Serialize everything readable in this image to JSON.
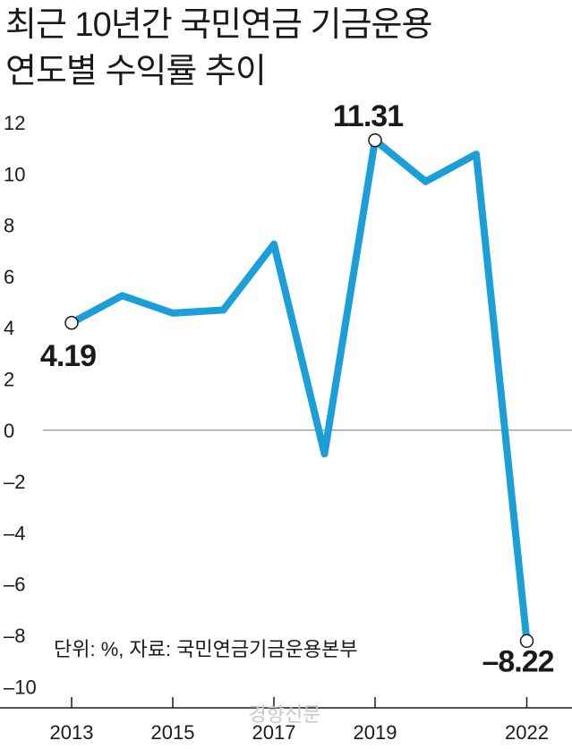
{
  "title_lines": [
    "최근 10년간 국민연금 기금운용",
    "연도별 수익률 추이"
  ],
  "note": "단위: %, 자료: 국민연금기금운용본부",
  "watermark": "경향신문",
  "colors": {
    "line": "#1a9fd9",
    "text": "#1a1a1a",
    "zero": "#777777",
    "marker_fill": "#ffffff"
  },
  "chart_data": {
    "type": "line",
    "title": "최근 10년간 국민연금 기금운용 연도별 수익률 추이",
    "xlabel": "",
    "ylabel": "",
    "x": [
      2013,
      2014,
      2015,
      2016,
      2017,
      2018,
      2019,
      2020,
      2021,
      2022
    ],
    "series": [
      {
        "values": [
          4.19,
          5.25,
          4.57,
          4.69,
          7.26,
          -0.92,
          11.31,
          9.7,
          10.77,
          -8.22
        ]
      }
    ],
    "ylim": [
      -10,
      12
    ],
    "yticks": [
      12,
      10,
      8,
      6,
      4,
      2,
      0,
      -2,
      -4,
      -6,
      -8,
      -10
    ],
    "ytick_labels": [
      "12",
      "10",
      "8",
      "6",
      "4",
      "2",
      "0",
      "–2",
      "–4",
      "–6",
      "–8",
      "–10"
    ],
    "xtick_labels": [
      "2013",
      "2015",
      "2017",
      "2019",
      "2022"
    ],
    "xtick_values": [
      2013,
      2015,
      2017,
      2019,
      2022
    ],
    "point_labels": [
      {
        "x": 2013,
        "text": "4.19"
      },
      {
        "x": 2019,
        "text": "11.31"
      },
      {
        "x": 2022,
        "text": "–8.22"
      }
    ],
    "grid": false,
    "legend": "none"
  }
}
